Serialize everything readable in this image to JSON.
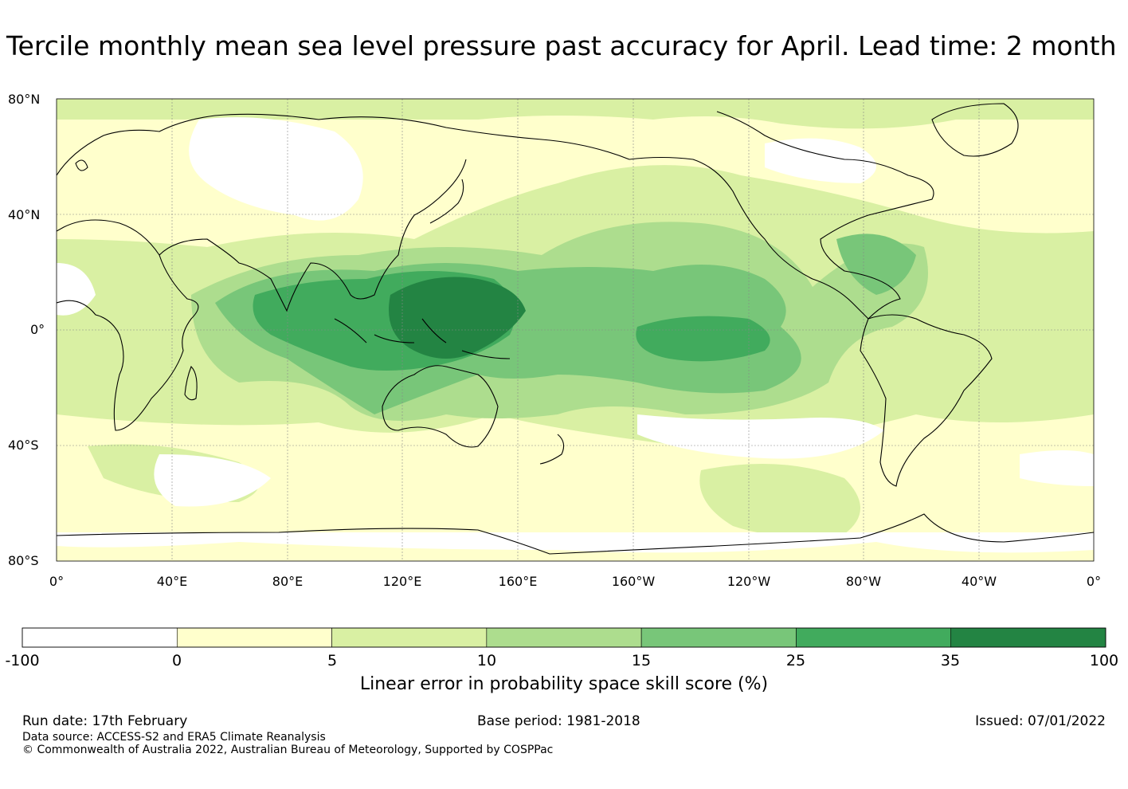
{
  "title": "Tercile monthly mean sea level pressure past accuracy for April. Lead time: 2 month",
  "map": {
    "lat_ticks": [
      "80°N",
      "40°N",
      "0°",
      "40°S",
      "80°S"
    ],
    "lon_ticks": [
      "0°",
      "40°E",
      "80°E",
      "120°E",
      "160°E",
      "160°W",
      "120°W",
      "80°W",
      "40°W",
      "0°"
    ],
    "colors": {
      "ocean_default": "#ffffcc",
      "coast": "#000000",
      "grid": "#888888"
    }
  },
  "colorbar": {
    "boundaries": [
      "-100",
      "0",
      "5",
      "10",
      "15",
      "25",
      "35",
      "100"
    ],
    "colors": [
      "#ffffff",
      "#ffffcc",
      "#d9f0a3",
      "#addd8e",
      "#78c679",
      "#41ab5d",
      "#238443"
    ],
    "label": "Linear error in probability space skill score (%)"
  },
  "footer": {
    "run_date": "Run date: 17th February",
    "base_period": "Base period: 1981-2018",
    "issued": "Issued: 07/01/2022",
    "data_source": "Data source: ACCESS-S2 and ERA5 Climate Reanalysis",
    "copyright": "© Commonwealth of Australia 2022, Australian Bureau of Meteorology, Supported by COSPPac"
  }
}
